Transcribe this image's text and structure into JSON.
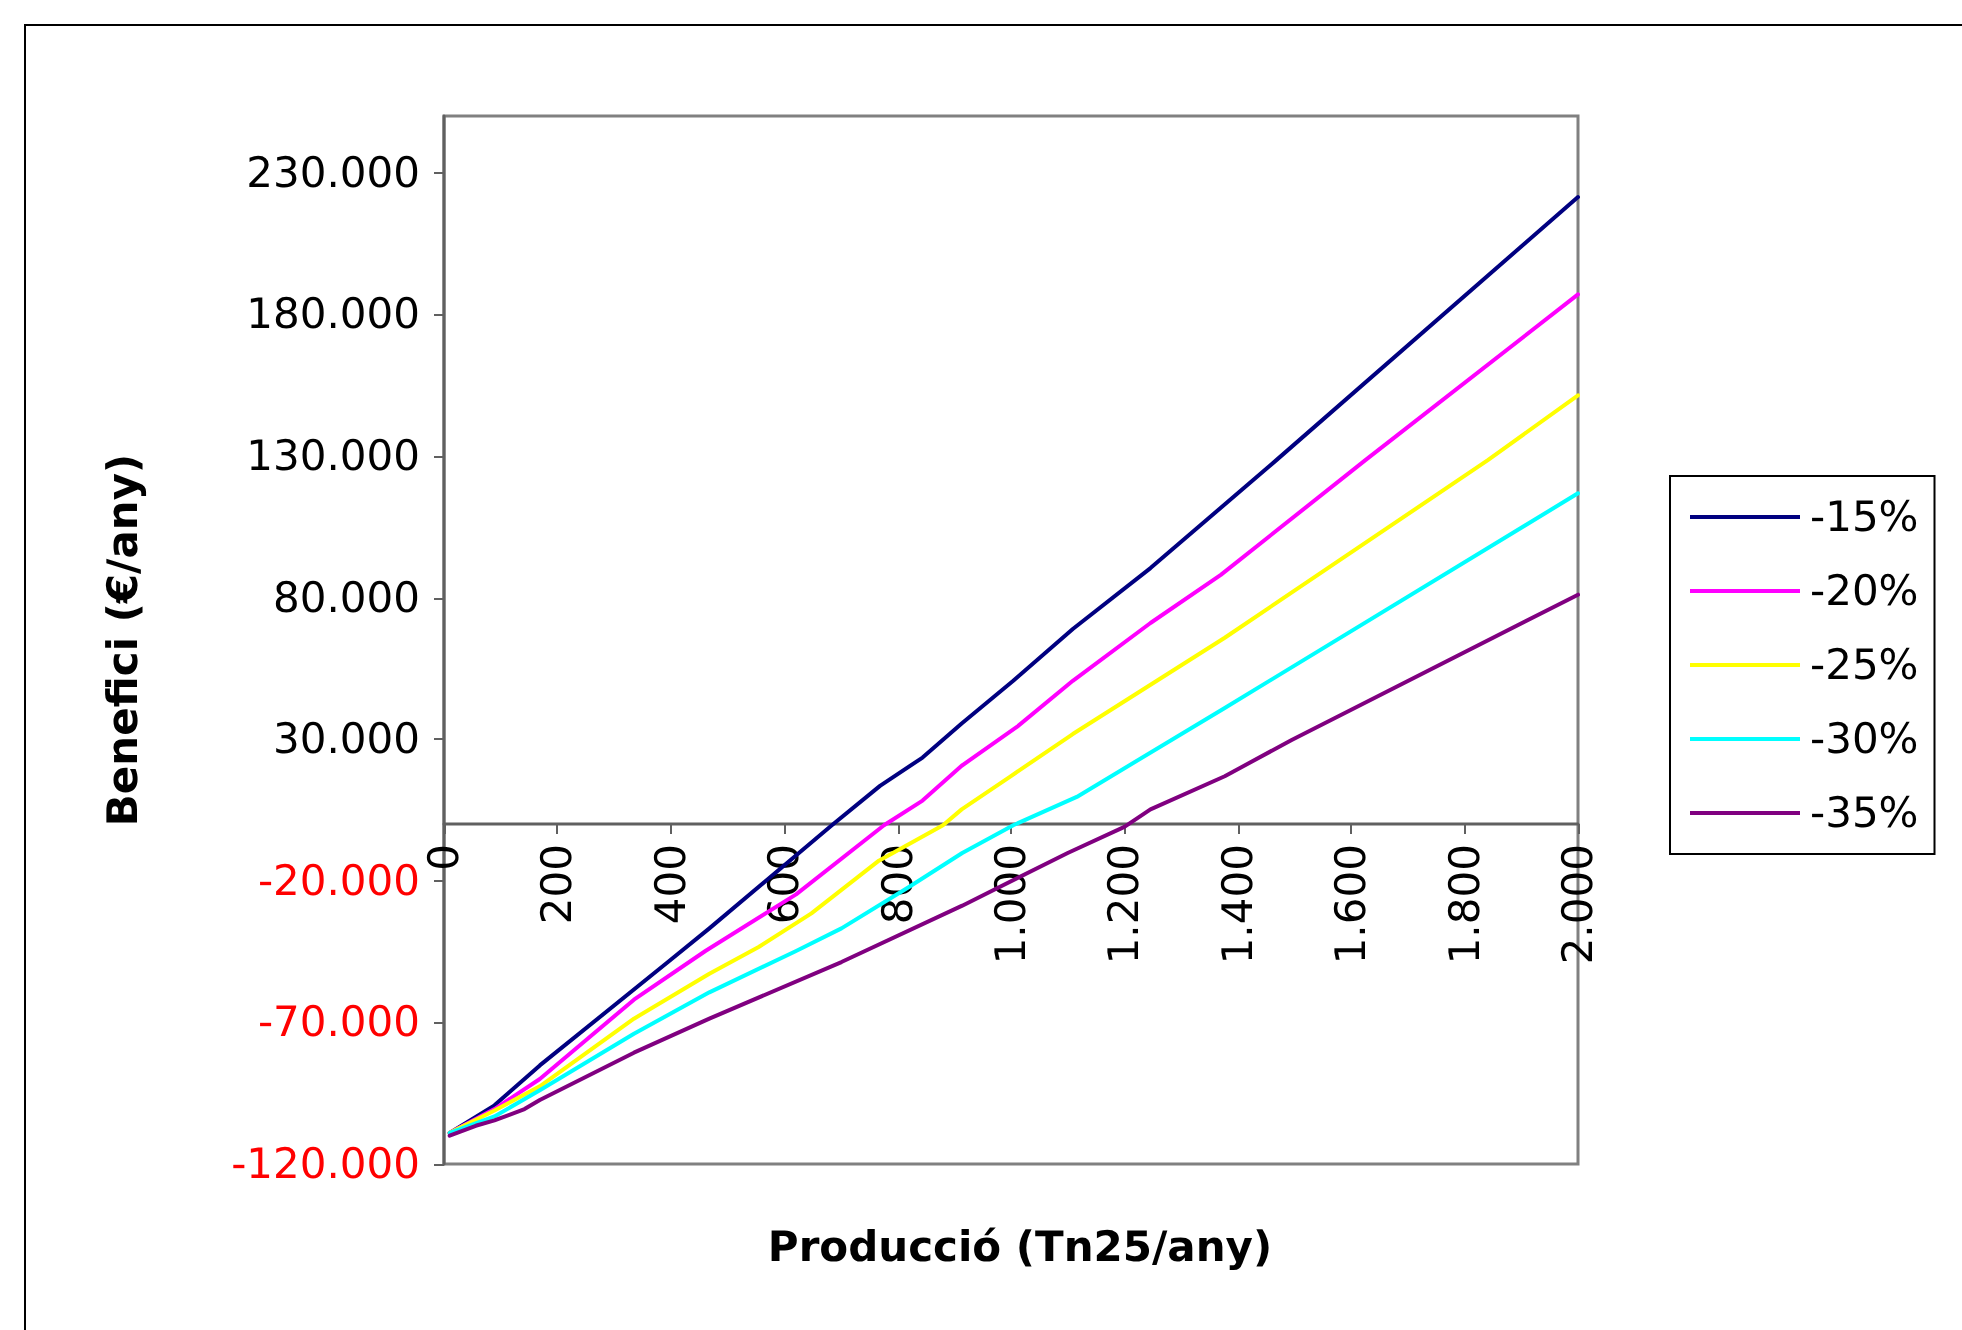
{
  "chart_data": {
    "type": "line",
    "xlabel": "Producció (Tn25/any)",
    "ylabel": "Benefici (€/any)",
    "xlim": [
      0,
      2000
    ],
    "xticks": [
      0,
      200,
      400,
      600,
      800,
      {
        "value": 1000,
        "label": "1.000"
      },
      {
        "value": 1200,
        "label": "1.200"
      },
      {
        "value": 1400,
        "label": "1.400"
      },
      {
        "value": 1600,
        "label": "1.600"
      },
      {
        "value": 1800,
        "label": "1.800"
      },
      {
        "value": 2000,
        "label": "2.000"
      }
    ],
    "ylim": [
      -120000,
      250000
    ],
    "yticks": [
      {
        "value": -120000,
        "label": "-120.000"
      },
      {
        "value": -70000,
        "label": "-70.000"
      },
      {
        "value": -20000,
        "label": "-20.000"
      },
      {
        "value": 30000,
        "label": "30.000"
      },
      {
        "value": 80000,
        "label": "80.000"
      },
      {
        "value": 130000,
        "label": "130.000"
      },
      {
        "value": 180000,
        "label": "180.000"
      },
      {
        "value": 230000,
        "label": "230.000"
      }
    ],
    "grid": false,
    "legend": "right",
    "marker": "none",
    "line_style": "solid",
    "series": [
      {
        "name": "-15%",
        "color": "#000080",
        "x": [
          10,
          89,
          169,
          395,
          468,
          684,
          769,
          844,
          913,
          1004,
          1109,
          1246,
          1468,
          2000
        ],
        "values": [
          -109000,
          -99300,
          -85200,
          -48700,
          -36800,
          -400,
          13500,
          23500,
          35500,
          50600,
          68900,
          90400,
          128500,
          221400
        ]
      },
      {
        "name": "-20%",
        "color": "#ff00ff",
        "x": [
          10,
          89,
          169,
          335,
          461,
          621,
          776,
          844,
          913,
          1011,
          1109,
          1246,
          1370,
          1625,
          2000
        ],
        "values": [
          -109000,
          -100600,
          -90000,
          -62000,
          -44800,
          -24800,
          -400,
          8300,
          20600,
          34400,
          50600,
          71000,
          88000,
          128500,
          187000
        ]
      },
      {
        "name": "-25%",
        "color": "#ffff00",
        "x": [
          10,
          89,
          169,
          335,
          468,
          555,
          648,
          767,
          880,
          913,
          998,
          1109,
          1377,
          1841,
          2000
        ],
        "values": [
          -109000,
          -101100,
          -92600,
          -68700,
          -52800,
          -43400,
          -31500,
          -12900,
          -400,
          5200,
          16700,
          31800,
          65800,
          128500,
          151400
        ]
      },
      {
        "name": "-30%",
        "color": "#00ffff",
        "x": [
          10,
          89,
          169,
          335,
          468,
          621,
          701,
          820,
          914,
          1004,
          1116,
          1377,
          2000
        ],
        "values": [
          -109000,
          -103200,
          -94000,
          -74000,
          -59400,
          -44800,
          -36800,
          -22200,
          -10200,
          -400,
          9600,
          41000,
          116800
        ]
      },
      {
        "name": "-35%",
        "color": "#800080",
        "x": [
          10,
          56,
          89,
          142,
          169,
          335,
          468,
          701,
          914,
          1100,
          1200,
          1246,
          1377,
          1495,
          2000
        ],
        "values": [
          -110000,
          -106500,
          -104600,
          -100600,
          -97400,
          -80700,
          -68700,
          -48700,
          -28800,
          -10200,
          -1000,
          5200,
          16900,
          29700,
          81000
        ]
      }
    ]
  }
}
